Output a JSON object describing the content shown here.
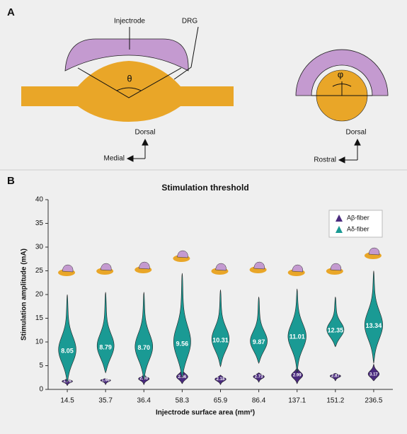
{
  "panel_a": {
    "label": "A",
    "left": {
      "injectrode": "Injectrode",
      "drg": "DRG",
      "angle": "θ",
      "dorsal": "Dorsal",
      "medial": "Medial"
    },
    "right": {
      "angle": "φ",
      "dorsal": "Dorsal",
      "rostral": "Rostral"
    }
  },
  "panel_b_label": "B",
  "chart_data": {
    "type": "violin",
    "title": "Stimulation threshold",
    "x_label": "Injectrode surface area (mm²)",
    "y_label": "Stimulation amplitude (mA)",
    "categories": [
      "14.5",
      "35.7",
      "36.4",
      "58.3",
      "65.9",
      "86.4",
      "137.1",
      "151.2",
      "236.5"
    ],
    "ylim": [
      0,
      40
    ],
    "yticks": [
      0,
      5,
      10,
      15,
      20,
      25,
      30,
      35,
      40
    ],
    "legend": "upper right",
    "series": [
      {
        "name": "Aβ-fiber",
        "color": "#4a2a7e",
        "values": [
          1.76,
          1.96,
          2.3,
          2.66,
          2.18,
          2.73,
          2.99,
          2.87,
          3.17
        ],
        "value_labels": [
          "1.76",
          "1.96",
          "2.30",
          "2.66",
          "2.18",
          "2.73",
          "2.99",
          "2.87",
          "3.17"
        ],
        "min": [
          0.8,
          1,
          1,
          1.2,
          1,
          1.5,
          1.2,
          1.8,
          1.8
        ],
        "max": [
          2.2,
          2.3,
          3,
          4.2,
          3,
          3.5,
          4.6,
          3.4,
          5.3
        ]
      },
      {
        "name": "Aδ-fiber",
        "color": "#1a9a94",
        "values": [
          8.05,
          8.79,
          8.7,
          9.56,
          10.31,
          9.87,
          11.01,
          12.35,
          13.34
        ],
        "value_labels": [
          "8.05",
          "8.79",
          "8.70",
          "9.56",
          "10.31",
          "9.87",
          "11.01",
          "12.35",
          "13.34"
        ],
        "min": [
          1.5,
          3.5,
          2,
          2.5,
          4.8,
          5.5,
          3.5,
          9,
          5.5
        ],
        "max": [
          20,
          20.5,
          20.5,
          24.5,
          21,
          19.5,
          21.2,
          19.5,
          25
        ]
      }
    ]
  }
}
